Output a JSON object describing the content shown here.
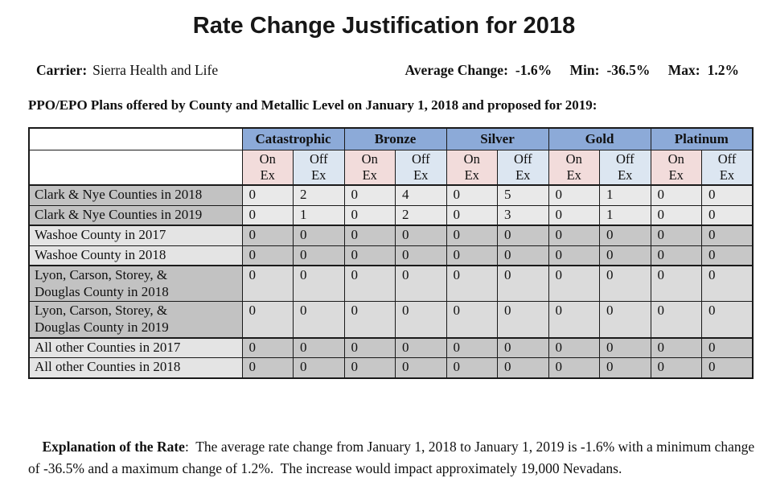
{
  "page": {
    "title": "Rate Change Justification for 2018",
    "carrier_label": "Carrier:",
    "carrier_name": "Sierra Health and Life",
    "stats": {
      "avg_label": "Average Change:",
      "avg_value": "-1.6%",
      "min_label": "Min:",
      "min_value": "-36.5%",
      "max_label": "Max:",
      "max_value": "1.2%"
    },
    "table_caption": "PPO/EPO Plans offered by County and Metallic Level on January 1, 2018 and proposed for 2019:",
    "explanation_label": "Explanation of the Rate",
    "explanation_text": ":  The average rate change from January 1, 2018 to January 1, 2019 is -1.6% with a minimum change of -36.5% and a maximum change of 1.2%.  The increase would impact approximately 19,000 Nevadans."
  },
  "table": {
    "metallic_levels": [
      "Catastrophic",
      "Bronze",
      "Silver",
      "Gold",
      "Platinum"
    ],
    "exchange_labels": [
      "On Ex",
      "Off Ex"
    ],
    "colors": {
      "header_blue": "#8caad8",
      "on_ex_pink": "#f2dcdb",
      "off_ex_blue": "#dce6f1",
      "label_dark": "#c2c2c2",
      "label_light": "#e4e4e4",
      "data_lightest": "#e9e9e9",
      "data_light": "#dbdbdb",
      "data_dark": "#c7c7c7"
    },
    "rows": [
      {
        "label": "Clark & Nye Counties in 2018",
        "values": [
          0,
          2,
          0,
          4,
          0,
          5,
          0,
          1,
          0,
          0
        ],
        "label_shade": "label_dark",
        "data_shade": "data_lightest",
        "tall": false
      },
      {
        "label": "Clark & Nye Counties in 2019",
        "values": [
          0,
          1,
          0,
          2,
          0,
          3,
          0,
          1,
          0,
          0
        ],
        "label_shade": "label_dark",
        "data_shade": "data_lightest",
        "tall": false
      },
      {
        "label": "Washoe County in 2017",
        "values": [
          0,
          0,
          0,
          0,
          0,
          0,
          0,
          0,
          0,
          0
        ],
        "label_shade": "label_light",
        "data_shade": "data_dark",
        "tall": false
      },
      {
        "label": "Washoe County in 2018",
        "values": [
          0,
          0,
          0,
          0,
          0,
          0,
          0,
          0,
          0,
          0
        ],
        "label_shade": "label_light",
        "data_shade": "data_dark",
        "tall": false
      },
      {
        "label": "Lyon, Carson, Storey, &\nDouglas County in 2018",
        "values": [
          0,
          0,
          0,
          0,
          0,
          0,
          0,
          0,
          0,
          0
        ],
        "label_shade": "label_dark",
        "data_shade": "data_light",
        "tall": true
      },
      {
        "label": "Lyon, Carson, Storey, &\nDouglas County in 2019",
        "values": [
          0,
          0,
          0,
          0,
          0,
          0,
          0,
          0,
          0,
          0
        ],
        "label_shade": "label_dark",
        "data_shade": "data_light",
        "tall": true
      },
      {
        "label": "All other Counties in 2017",
        "values": [
          0,
          0,
          0,
          0,
          0,
          0,
          0,
          0,
          0,
          0
        ],
        "label_shade": "label_light",
        "data_shade": "data_dark",
        "tall": false
      },
      {
        "label": "All other Counties in 2018",
        "values": [
          0,
          0,
          0,
          0,
          0,
          0,
          0,
          0,
          0,
          0
        ],
        "label_shade": "label_light",
        "data_shade": "data_dark",
        "tall": false
      }
    ]
  }
}
